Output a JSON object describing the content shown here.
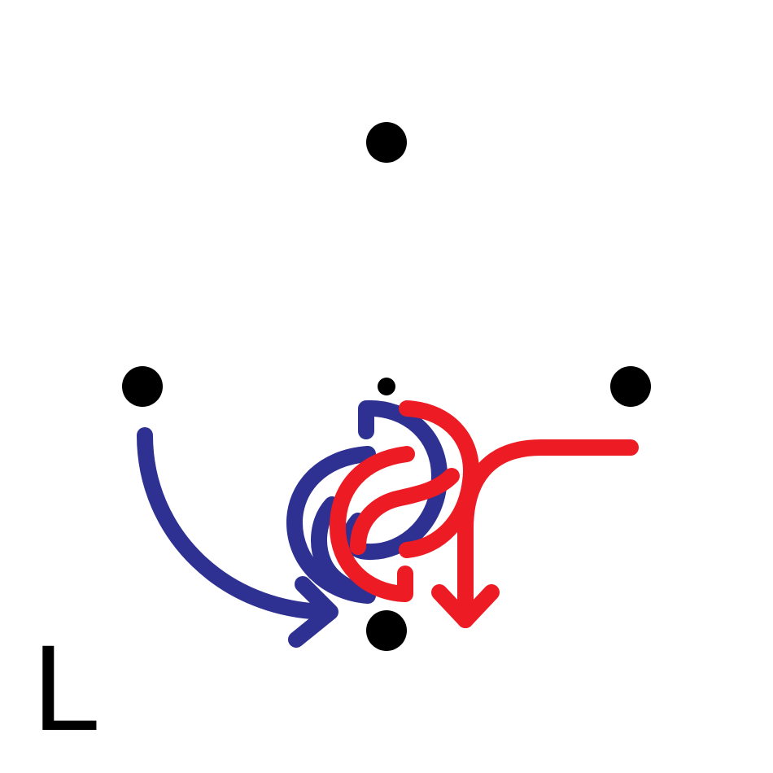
{
  "diagram": {
    "label": "L",
    "colors": {
      "blue": "#2e3192",
      "red": "#ed1c24",
      "dot": "#000000",
      "background": "#ffffff"
    },
    "dots": [
      "top",
      "left",
      "right",
      "bottom",
      "center-small"
    ],
    "strokes": [
      {
        "name": "blue-arrow",
        "color": "blue",
        "from": "left",
        "to": "bottom"
      },
      {
        "name": "red-arrow",
        "color": "red",
        "from": "right",
        "to": "bottom"
      },
      {
        "name": "blue-swirl",
        "color": "blue"
      },
      {
        "name": "red-swirl",
        "color": "red"
      }
    ]
  }
}
